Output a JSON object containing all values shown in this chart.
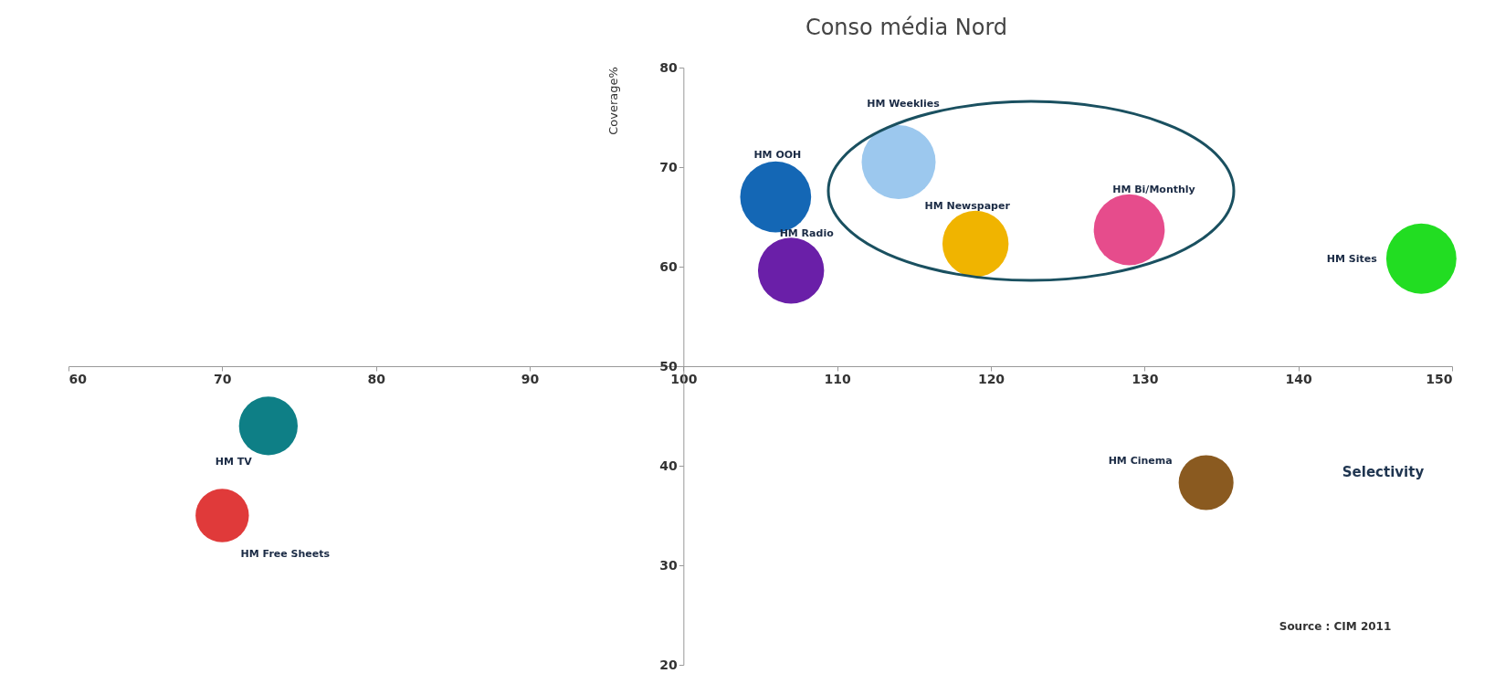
{
  "chart_data": {
    "type": "bubble",
    "title": "Conso média Nord",
    "xlabel": "Selectivity",
    "ylabel": "Coverage%",
    "annotations": [
      "Source : CIM 2011"
    ],
    "xlim": [
      60,
      150
    ],
    "ylim": [
      20,
      80
    ],
    "xticks": [
      60,
      70,
      80,
      90,
      100,
      110,
      120,
      130,
      140,
      150
    ],
    "yticks": [
      20,
      30,
      40,
      50,
      60,
      70,
      80
    ],
    "series": [
      {
        "name": "HM TV",
        "color": "#0e7f86",
        "x": [
          73
        ],
        "values": [
          44
        ],
        "sizes": [
          0.63
        ]
      },
      {
        "name": "HM Free Sheets",
        "color": "#e03a3a",
        "x": [
          70
        ],
        "values": [
          35
        ],
        "sizes": [
          0.52
        ]
      },
      {
        "name": "HM OOH",
        "color": "#1467b5",
        "x": [
          106
        ],
        "values": [
          67
        ],
        "sizes": [
          0.92
        ]
      },
      {
        "name": "HM Radio",
        "color": "#6a1fa8",
        "x": [
          107
        ],
        "values": [
          59.6
        ],
        "sizes": [
          0.8
        ]
      },
      {
        "name": "HM Weeklies",
        "color": "#9cc8ee",
        "x": [
          114
        ],
        "values": [
          70.5
        ],
        "sizes": [
          1
        ]
      },
      {
        "name": "HM Newspaper",
        "color": "#f0b400",
        "x": [
          119
        ],
        "values": [
          62.3
        ],
        "sizes": [
          0.8
        ]
      },
      {
        "name": "HM Bi/Monthly",
        "color": "#e64c8c",
        "x": [
          129
        ],
        "values": [
          63.7
        ],
        "sizes": [
          0.92
        ]
      },
      {
        "name": "HM Sites",
        "color": "#22dd22",
        "x": [
          148
        ],
        "values": [
          60.8
        ],
        "sizes": [
          0.9
        ]
      },
      {
        "name": "HM Cinema",
        "color": "#8a5a20",
        "x": [
          134
        ],
        "values": [
          38.3
        ],
        "sizes": [
          0.55
        ]
      }
    ]
  }
}
